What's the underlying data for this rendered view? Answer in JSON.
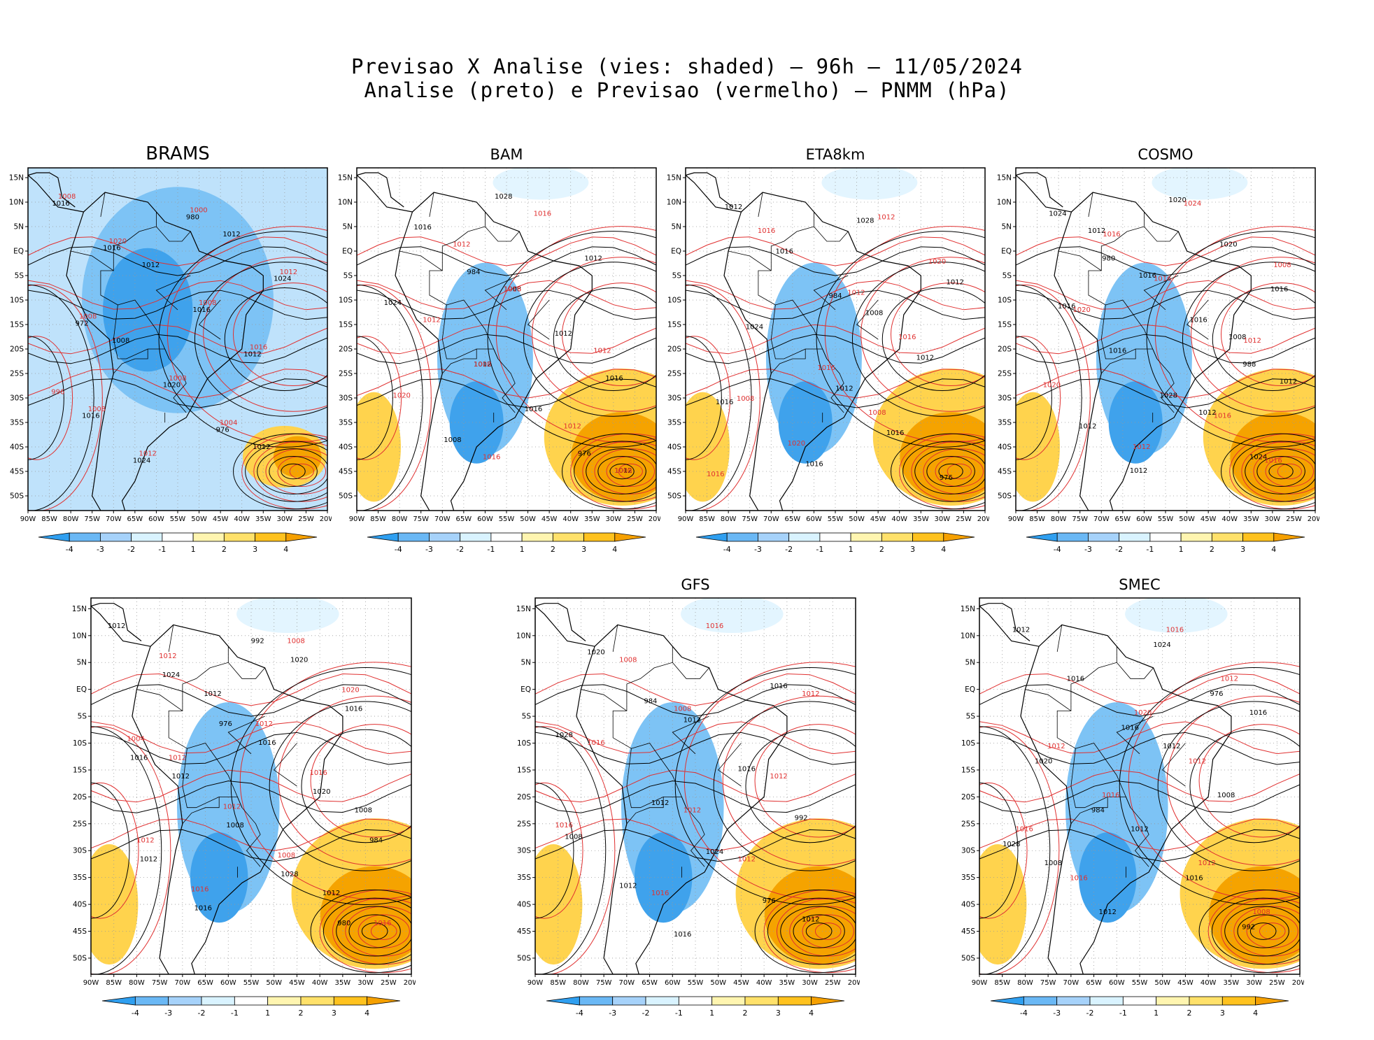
{
  "title": {
    "line1": "Previsao X Analise (vies: shaded) – 96h – 11/05/2024",
    "line2": "Analise (preto) e Previsao (vermelho) – PNMM (hPa)"
  },
  "axes": {
    "lon_labels": [
      "90W",
      "85W",
      "80W",
      "75W",
      "70W",
      "65W",
      "60W",
      "55W",
      "50W",
      "45W",
      "40W",
      "35W",
      "30W",
      "25W",
      "20W"
    ],
    "lat_labels": [
      "15N",
      "10N",
      "5N",
      "EQ",
      "5S",
      "10S",
      "15S",
      "20S",
      "25S",
      "30S",
      "35S",
      "40S",
      "45S",
      "50S"
    ]
  },
  "colorbar": {
    "labels": [
      "-4",
      "-3",
      "-2",
      "-1",
      "1",
      "2",
      "3",
      "4"
    ],
    "colors": [
      "#2f9ff0",
      "#6ab8f5",
      "#a6d2fa",
      "#d9f3ff",
      "#ffffff",
      "#fff5b0",
      "#ffe16a",
      "#ffc21e",
      "#f5a000"
    ]
  },
  "colors": {
    "analysis": "#000000",
    "forecast": "#e03030",
    "neg": "#7dc3f5",
    "neg_dark": "#3fa2ec",
    "pos": "#ffd34d",
    "pos_dark": "#f5a300",
    "land": "#000000"
  },
  "panels": [
    {
      "key": "brams",
      "title": "BRAMS",
      "bias": "neg",
      "analysis_labels": [
        "1012",
        "1012",
        "1008",
        "1012",
        "1016",
        "1016",
        "1016",
        "1020",
        "1024",
        "1024",
        "1012",
        "1016",
        "976",
        "972",
        "980"
      ],
      "forecast_labels": [
        "1008",
        "1008",
        "1008",
        "1008",
        "1012",
        "1012",
        "1016",
        "1020",
        "1004",
        "1008",
        "1000",
        "996"
      ]
    },
    {
      "key": "bam",
      "title": "BAM",
      "bias": "pos",
      "analysis_labels": [
        "1008",
        "1012",
        "1012",
        "1012",
        "1008",
        "1012",
        "1016",
        "1016",
        "1024",
        "1028",
        "1016",
        "984",
        "976"
      ],
      "forecast_labels": [
        "1016",
        "1012",
        "1012",
        "1012",
        "1012",
        "1016",
        "1020",
        "1016",
        "1008",
        "1008"
      ]
    },
    {
      "key": "eta8km",
      "title": "ETA8km",
      "bias": "pos",
      "analysis_labels": [
        "1008",
        "1012",
        "1012",
        "1012",
        "1016",
        "1012",
        "1016",
        "1016",
        "1024",
        "1028",
        "1016",
        "984",
        "976"
      ],
      "forecast_labels": [
        "1012",
        "1008",
        "1012",
        "1016",
        "1016",
        "1020",
        "1020",
        "1016",
        "1016",
        "1008"
      ]
    },
    {
      "key": "cosmo",
      "title": "COSMO",
      "bias": "pos",
      "analysis_labels": [
        "1008",
        "1012",
        "1012",
        "1016",
        "1020",
        "1012",
        "1016",
        "1024",
        "1016",
        "1020",
        "1012",
        "1016",
        "1024",
        "1028",
        "1016",
        "1012",
        "988",
        "980"
      ],
      "forecast_labels": [
        "1008",
        "1012",
        "1012",
        "1016",
        "1016",
        "1020",
        "1024",
        "1020",
        "1016",
        "1016"
      ]
    },
    {
      "key": "panel5",
      "title": "",
      "bias": "pos",
      "analysis_labels": [
        "1008",
        "1012",
        "1012",
        "1012",
        "1020",
        "1012",
        "1016",
        "1012",
        "1008",
        "1016",
        "1016",
        "1020",
        "1024",
        "1028",
        "1016",
        "992",
        "984",
        "976",
        "980"
      ],
      "forecast_labels": [
        "1012",
        "1008",
        "1012",
        "1012",
        "1016",
        "1012",
        "1020",
        "1016",
        "1016",
        "1012",
        "1008",
        "1004"
      ]
    },
    {
      "key": "gfs",
      "title": "GFS",
      "bias": "pos",
      "analysis_labels": [
        "1008",
        "1012",
        "1012",
        "1012",
        "1016",
        "1012",
        "1016",
        "1020",
        "1024",
        "1028",
        "1016",
        "992",
        "984",
        "976"
      ],
      "forecast_labels": [
        "1012",
        "1012",
        "1016",
        "1012",
        "1008",
        "1012",
        "1016",
        "1016",
        "1016",
        "1008"
      ]
    },
    {
      "key": "smec",
      "title": "SMEC",
      "bias": "pos",
      "analysis_labels": [
        "1008",
        "1012",
        "1012",
        "1012",
        "1016",
        "1012",
        "1008",
        "1016",
        "1016",
        "1020",
        "1024",
        "1028",
        "1016",
        "992",
        "984",
        "976"
      ],
      "forecast_labels": [
        "1012",
        "1012",
        "1016",
        "1016",
        "1020",
        "1008",
        "1016",
        "1012",
        "1016",
        "1012"
      ]
    }
  ]
}
